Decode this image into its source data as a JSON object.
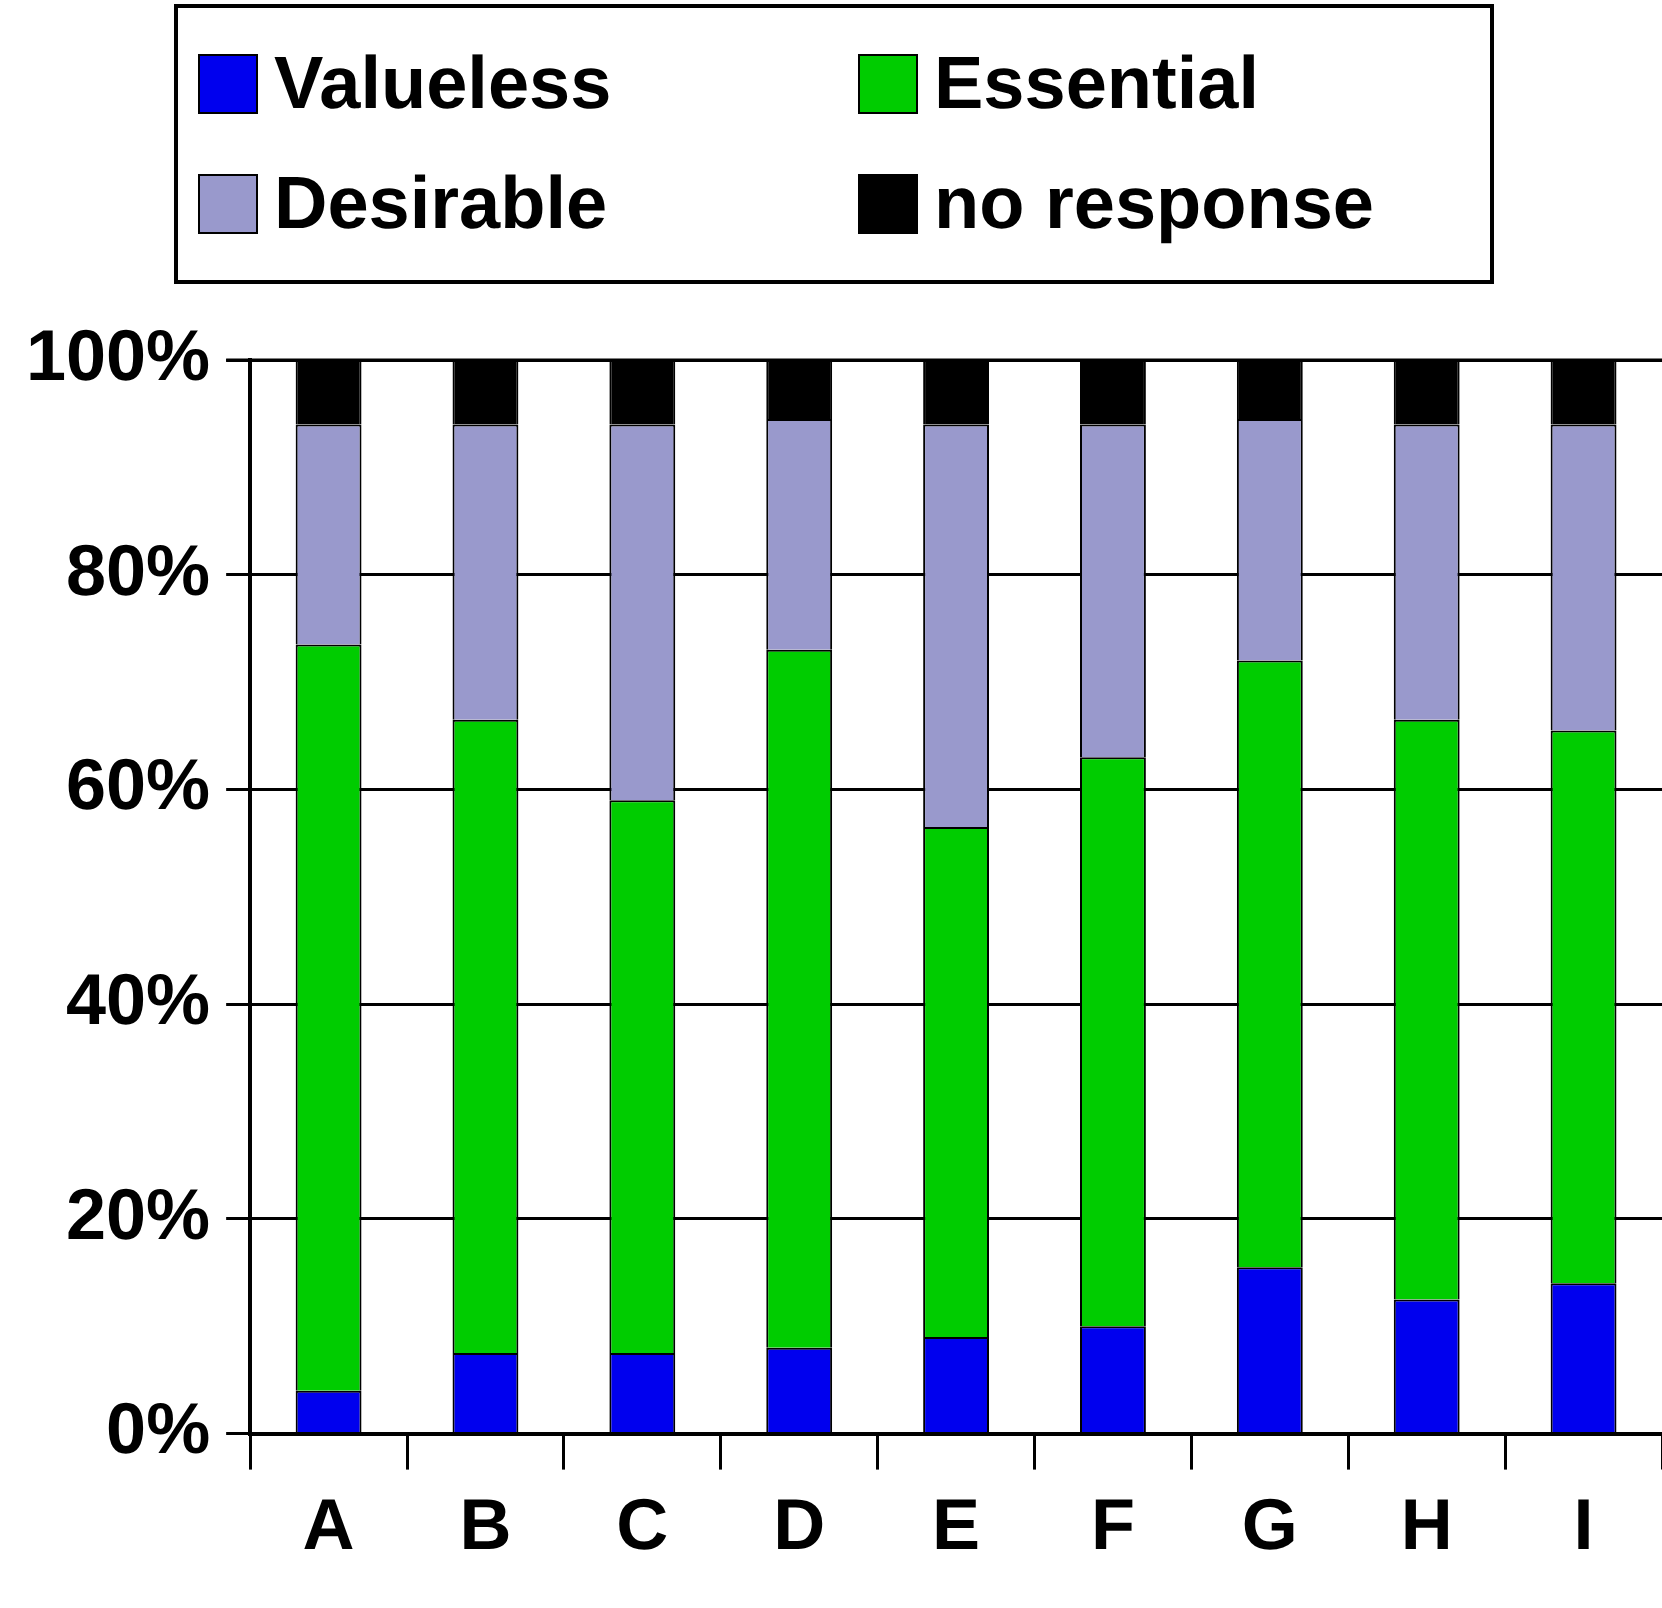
{
  "chart_data": {
    "type": "bar",
    "stacked": true,
    "categories": [
      "A",
      "B",
      "C",
      "D",
      "E",
      "F",
      "G",
      "H",
      "I"
    ],
    "series": [
      {
        "name": "Valueless",
        "color": "#0000ee",
        "values": [
          4,
          7.5,
          7.5,
          8,
          9,
          10,
          15.5,
          12.5,
          14
        ]
      },
      {
        "name": "Essential",
        "color": "#00cc00",
        "values": [
          69.5,
          59,
          51.5,
          65,
          47.5,
          53,
          56.5,
          54,
          51.5
        ]
      },
      {
        "name": "Desirable",
        "color": "#9999cc",
        "values": [
          20.5,
          27.5,
          35,
          21.5,
          37.5,
          31,
          22.5,
          27.5,
          28.5
        ]
      },
      {
        "name": "no response",
        "color": "#000000",
        "values": [
          6,
          6,
          6,
          5.5,
          6,
          6,
          5.5,
          6,
          6
        ]
      }
    ],
    "ylim": [
      0,
      100
    ],
    "yticks": [
      {
        "value": 0,
        "label": "0%"
      },
      {
        "value": 20,
        "label": "20%"
      },
      {
        "value": 40,
        "label": "40%"
      },
      {
        "value": 60,
        "label": "60%"
      },
      {
        "value": 80,
        "label": "80%"
      },
      {
        "value": 100,
        "label": "100%"
      }
    ],
    "grid": "y",
    "legend": "top"
  }
}
